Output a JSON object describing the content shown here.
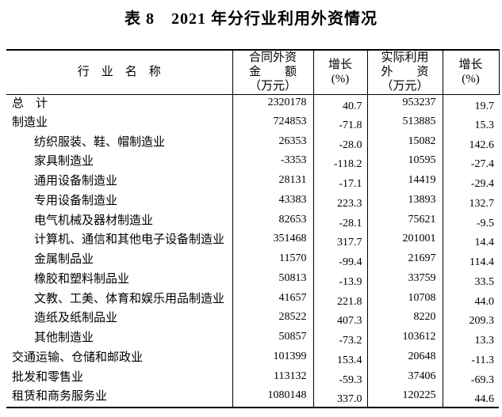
{
  "title": "表 8　2021 年分行业利用外资情况",
  "table": {
    "headers": {
      "industry": "行　业　名　称",
      "contracted": [
        "合同外资",
        "金　　额",
        "（万元）"
      ],
      "growth_a": [
        "增长",
        "(%)"
      ],
      "utilized": [
        "实际利用",
        "外　　资",
        "（万元）"
      ],
      "growth_b": [
        "增长",
        "(%)"
      ]
    },
    "rows": [
      {
        "industry": "总　计",
        "indent": 0,
        "contracted": "2320178",
        "growth_a": "40.7",
        "utilized": "953237",
        "growth_b": "19.7"
      },
      {
        "industry": "制造业",
        "indent": 0,
        "contracted": "724853",
        "growth_a": "-71.8",
        "utilized": "513885",
        "growth_b": "15.3"
      },
      {
        "industry": "纺织服装、鞋、帽制造业",
        "indent": 1,
        "contracted": "26353",
        "growth_a": "-28.0",
        "utilized": "15082",
        "growth_b": "142.6"
      },
      {
        "industry": "家具制造业",
        "indent": 1,
        "contracted": "-3353",
        "growth_a": "-118.2",
        "utilized": "10595",
        "growth_b": "-27.4"
      },
      {
        "industry": "通用设备制造业",
        "indent": 1,
        "contracted": "28131",
        "growth_a": "-17.1",
        "utilized": "14419",
        "growth_b": "-29.4"
      },
      {
        "industry": "专用设备制造业",
        "indent": 1,
        "contracted": "43383",
        "growth_a": "223.3",
        "utilized": "13893",
        "growth_b": "132.7"
      },
      {
        "industry": "电气机械及器材制造业",
        "indent": 1,
        "contracted": "82653",
        "growth_a": "-28.1",
        "utilized": "75621",
        "growth_b": "-9.5"
      },
      {
        "industry": "计算机、通信和其他电子设备制造业",
        "indent": 1,
        "contracted": "351468",
        "growth_a": "317.7",
        "utilized": "201001",
        "growth_b": "14.4"
      },
      {
        "industry": "金属制品业",
        "indent": 1,
        "contracted": "11570",
        "growth_a": "-99.4",
        "utilized": "21697",
        "growth_b": "114.4"
      },
      {
        "industry": "橡胶和塑料制品业",
        "indent": 1,
        "contracted": "50813",
        "growth_a": "-13.9",
        "utilized": "33759",
        "growth_b": "33.5"
      },
      {
        "industry": "文教、工美、体育和娱乐用品制造业",
        "indent": 1,
        "contracted": "41657",
        "growth_a": "221.8",
        "utilized": "10708",
        "growth_b": "44.0"
      },
      {
        "industry": "造纸及纸制品业",
        "indent": 1,
        "contracted": "28522",
        "growth_a": "407.3",
        "utilized": "8220",
        "growth_b": "209.3"
      },
      {
        "industry": "其他制造业",
        "indent": 1,
        "contracted": "50857",
        "growth_a": "-73.2",
        "utilized": "103612",
        "growth_b": "13.3"
      },
      {
        "industry": "交通运输、仓储和邮政业",
        "indent": 0,
        "contracted": "101399",
        "growth_a": "153.4",
        "utilized": "20648",
        "growth_b": "-11.3"
      },
      {
        "industry": "批发和零售业",
        "indent": 0,
        "contracted": "113132",
        "growth_a": "-59.3",
        "utilized": "37406",
        "growth_b": "-69.3"
      },
      {
        "industry": "租赁和商务服务业",
        "indent": 0,
        "contracted": "1080148",
        "growth_a": "337.0",
        "utilized": "120225",
        "growth_b": "44.6"
      }
    ]
  }
}
